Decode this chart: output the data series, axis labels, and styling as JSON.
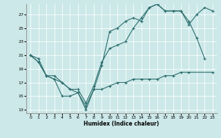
{
  "xlabel": "Humidex (Indice chaleur)",
  "bg_color": "#cce8e8",
  "line_color": "#2a6b6b",
  "xlim": [
    -0.5,
    23.5
  ],
  "ylim": [
    12.5,
    28.5
  ],
  "x_ticks": [
    0,
    1,
    2,
    3,
    4,
    5,
    6,
    7,
    8,
    9,
    10,
    11,
    12,
    13,
    14,
    15,
    16,
    17,
    18,
    19,
    20,
    21,
    22,
    23
  ],
  "y_ticks": [
    13,
    15,
    17,
    19,
    21,
    23,
    25,
    27
  ],
  "series": [
    {
      "x": [
        0,
        1,
        2,
        3,
        4,
        5,
        6,
        7,
        8,
        9,
        10,
        11,
        12,
        13,
        14,
        15,
        16,
        17,
        18,
        19,
        20,
        21,
        22
      ],
      "y": [
        21,
        20.5,
        18,
        17.5,
        17,
        16,
        15.5,
        13,
        16,
        19.5,
        24.5,
        25,
        26,
        26.5,
        26,
        28,
        28.5,
        27.5,
        27.5,
        27.5,
        26,
        23.5,
        20.5
      ]
    },
    {
      "x": [
        0,
        1,
        2,
        3,
        4,
        5,
        6,
        7,
        8,
        9,
        10,
        11,
        12,
        13,
        14,
        15,
        16,
        17,
        18,
        19,
        20,
        21,
        22,
        23
      ],
      "y": [
        21,
        20,
        18,
        18,
        17,
        16,
        16,
        14,
        16.5,
        20,
        22,
        22.5,
        23,
        25,
        26.5,
        28,
        28.5,
        27.5,
        27.5,
        27.5,
        25.5,
        27,
        28,
        27.5
      ]
    },
    {
      "x": [
        0,
        1,
        2,
        3,
        4,
        5,
        6,
        7,
        8,
        9,
        10,
        11,
        12,
        13,
        14,
        15,
        16,
        17,
        18,
        19,
        20,
        23
      ],
      "y": [
        21,
        20,
        18,
        17.5,
        15,
        15,
        15.5,
        13.5,
        16,
        16,
        16.5,
        17,
        17,
        17.5,
        17.5,
        17.5,
        17.5,
        18,
        18,
        18.5,
        18.5,
        18.5
      ]
    }
  ]
}
